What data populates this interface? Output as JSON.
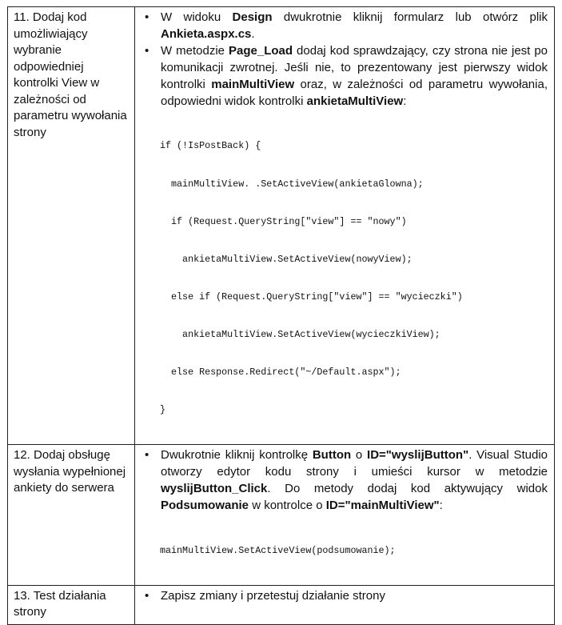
{
  "steps": [
    {
      "label": "11. Dodaj kod umożliwiający wybranie odpowiedniej kontrolki View w zależności od parametru wywołania strony",
      "bullets": [
        [
          {
            "t": "W widoku "
          },
          {
            "t": "Design",
            "b": true
          },
          {
            "t": " dwukrotnie kliknij formularz lub otwórz plik "
          },
          {
            "t": "Ankieta.aspx.cs",
            "b": true
          },
          {
            "t": "."
          }
        ],
        [
          {
            "t": "W metodzie "
          },
          {
            "t": "Page_Load",
            "b": true
          },
          {
            "t": " dodaj kod sprawdzający, czy strona nie jest po komunikacji zwrotnej. Jeśli nie, to prezentowany jest pierwszy widok kontrolki "
          },
          {
            "t": "mainMultiView",
            "b": true
          },
          {
            "t": " oraz, w zależności od parametru wywołania, odpowiedni widok kontrolki "
          },
          {
            "t": "ankietaMultiView",
            "b": true
          },
          {
            "t": ":"
          }
        ]
      ],
      "code": [
        "if (!IsPostBack) {",
        "  mainMultiView. .SetActiveView(ankietaGlowna);",
        "  if (Request.QueryString[\"view\"] == \"nowy\")",
        "    ankietaMultiView.SetActiveView(nowyView);",
        "  else if (Request.QueryString[\"view\"] == \"wycieczki\")",
        "    ankietaMultiView.SetActiveView(wycieczkiView);",
        "  else Response.Redirect(\"~/Default.aspx\");",
        "}"
      ]
    },
    {
      "label": "12. Dodaj obsługę wysłania wypełnionej ankiety do serwera",
      "bullets": [
        [
          {
            "t": "Dwukrotnie kliknij kontrolkę "
          },
          {
            "t": "Button",
            "b": true
          },
          {
            "t": " o "
          },
          {
            "t": "ID=\"wyslijButton\"",
            "b": true
          },
          {
            "t": ". Visual Studio otworzy edytor kodu strony i umieści kursor w metodzie "
          },
          {
            "t": "wyslijButton_Click",
            "b": true
          },
          {
            "t": ". Do metody dodaj kod aktywujący widok "
          },
          {
            "t": "Podsumowanie",
            "b": true
          },
          {
            "t": " w kontrolce o "
          },
          {
            "t": "ID=\"mainMultiView\"",
            "b": true
          },
          {
            "t": ":"
          }
        ]
      ],
      "code": [
        "mainMultiView.SetActiveView(podsumowanie);"
      ]
    },
    {
      "label": "13. Test działania strony",
      "bullets": [
        [
          {
            "t": "Zapisz zmiany i przetestuj działanie strony"
          }
        ]
      ],
      "code": []
    }
  ]
}
